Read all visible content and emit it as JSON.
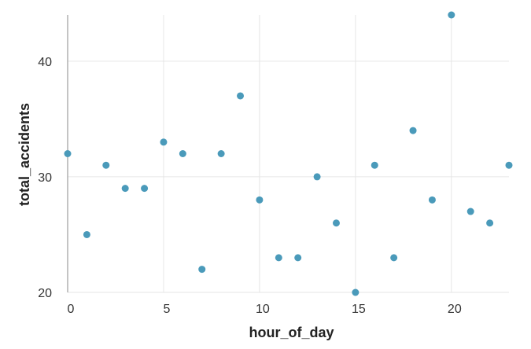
{
  "chart_data": {
    "type": "scatter",
    "title": "",
    "xlabel": "hour_of_day",
    "ylabel": "total_accidents",
    "xlim": [
      0,
      23
    ],
    "ylim": [
      20,
      44
    ],
    "x_ticks": [
      0,
      5,
      10,
      15,
      20
    ],
    "y_ticks": [
      20,
      30,
      40
    ],
    "grid": true,
    "legend": "none",
    "point_color": "#4a9aba",
    "x": [
      0,
      1,
      2,
      3,
      4,
      5,
      6,
      7,
      8,
      9,
      10,
      11,
      12,
      13,
      14,
      15,
      16,
      17,
      18,
      19,
      20,
      21,
      22,
      23
    ],
    "y": [
      32,
      25,
      31,
      29,
      29,
      33,
      32,
      22,
      32,
      37,
      28,
      23,
      23,
      30,
      26,
      20,
      31,
      23,
      34,
      28,
      44,
      27,
      26,
      31
    ]
  }
}
